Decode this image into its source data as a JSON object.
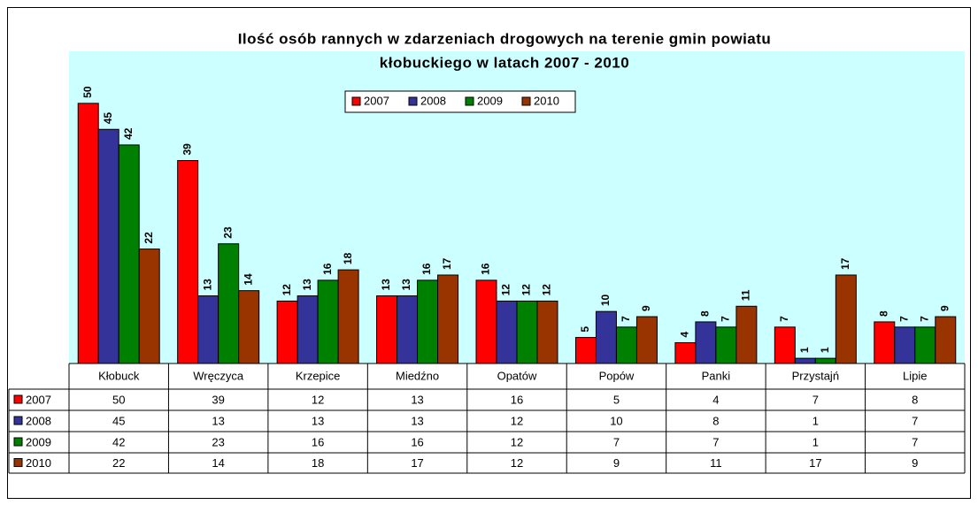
{
  "chart_data": {
    "type": "bar",
    "title": [
      "Ilość osób rannych w zdarzeniach drogowych na terenie gmin powiatu",
      "kłobuckiego w latach 2007 - 2010"
    ],
    "categories": [
      "Kłobuck",
      "Wręczyca",
      "Krzepice",
      "Miedźno",
      "Opatów",
      "Popów",
      "Panki",
      "Przystajń",
      "Lipie"
    ],
    "series": [
      {
        "name": "2007",
        "color": "#ff0000",
        "values": [
          50,
          39,
          12,
          13,
          16,
          5,
          4,
          7,
          8
        ]
      },
      {
        "name": "2008",
        "color": "#333399",
        "values": [
          45,
          13,
          13,
          13,
          12,
          10,
          8,
          1,
          7
        ]
      },
      {
        "name": "2009",
        "color": "#008000",
        "values": [
          42,
          23,
          16,
          16,
          12,
          7,
          7,
          1,
          7
        ]
      },
      {
        "name": "2010",
        "color": "#993300",
        "values": [
          22,
          14,
          18,
          17,
          12,
          9,
          11,
          17,
          9
        ]
      }
    ],
    "ylim": [
      0,
      60
    ],
    "legend": "top",
    "data_table": true
  }
}
